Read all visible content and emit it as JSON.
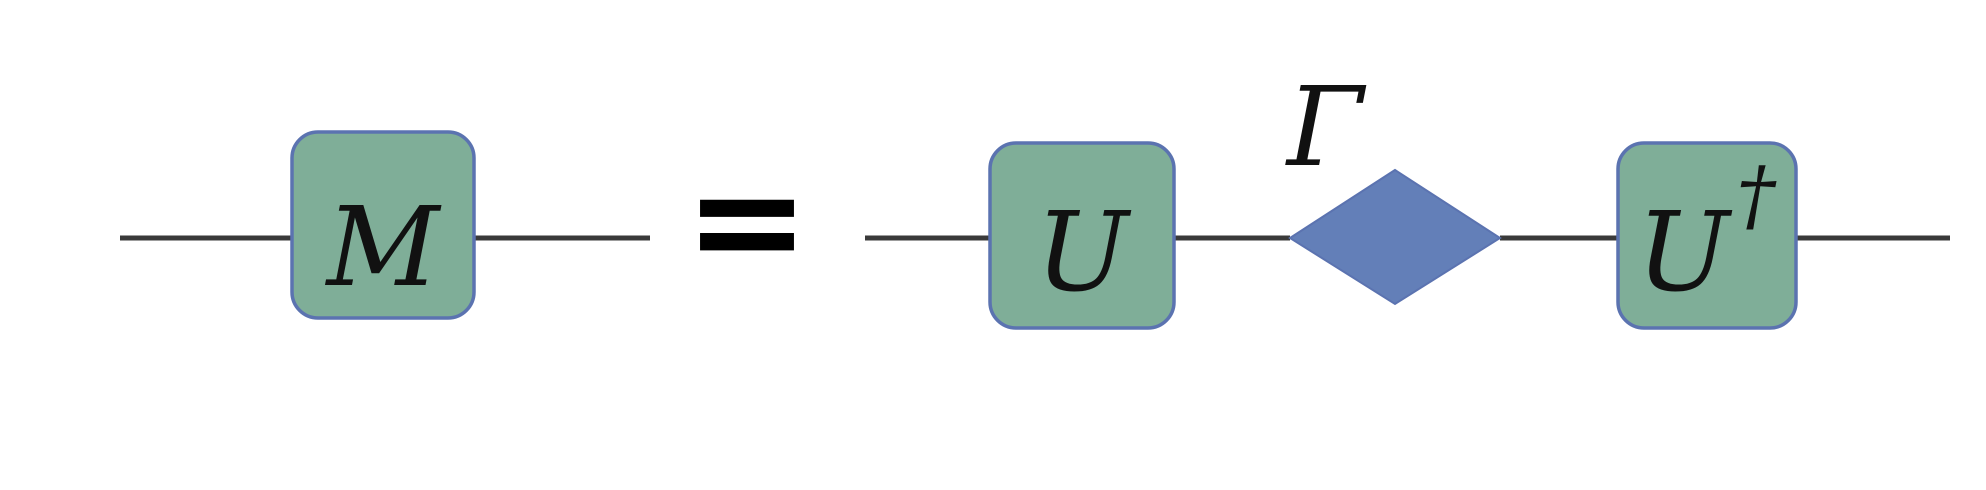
{
  "diagram": {
    "lhs": {
      "tensor_label": "M"
    },
    "equals_sign": "=",
    "rhs": {
      "left_tensor_label": "U",
      "middle_tensor_label": "Γ",
      "right_tensor_label": "U",
      "right_tensor_superscript": "†"
    }
  },
  "colors": {
    "tensor_fill": "#7fae98",
    "tensor_border": "#5b73b0",
    "diamond_fill": "#637fb8",
    "wire": "#3a3a3a"
  }
}
